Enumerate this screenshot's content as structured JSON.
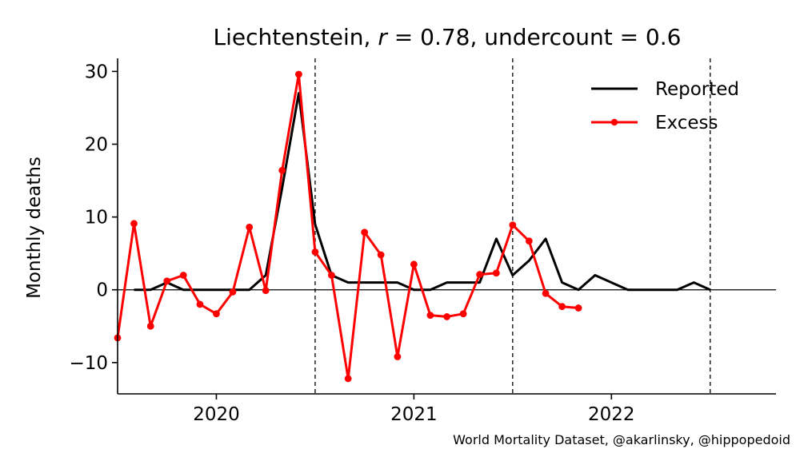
{
  "chart_data": {
    "type": "line",
    "title_prefix": "Liechtenstein, ",
    "r_symbol": "r",
    "r_text": " = 0.78, undercount = 0.6",
    "xlabel": "",
    "ylabel": "Monthly deaths",
    "xlim": [
      2019.5,
      2022.833
    ],
    "ylim": [
      -14.3,
      31.8
    ],
    "yticks": [
      -10,
      0,
      10,
      20,
      30
    ],
    "ytick_labels": [
      "−10",
      "0",
      "10",
      "20",
      "30"
    ],
    "xticks": [
      2020,
      2021,
      2022
    ],
    "xtick_labels": [
      "2020",
      "2021",
      "2022"
    ],
    "vlines": [
      2020.5,
      2021.5,
      2022.5
    ],
    "hline": 0,
    "series": [
      {
        "name": "Reported",
        "color": "#000000",
        "markers": false,
        "x": [
          2019.583,
          2019.667,
          2019.75,
          2019.833,
          2019.917,
          2020.0,
          2020.083,
          2020.167,
          2020.25,
          2020.333,
          2020.417,
          2020.5,
          2020.583,
          2020.667,
          2020.75,
          2020.833,
          2020.917,
          2021.0,
          2021.083,
          2021.167,
          2021.25,
          2021.333,
          2021.417,
          2021.5,
          2021.583,
          2021.667,
          2021.75,
          2021.833,
          2021.917,
          2022.0,
          2022.083,
          2022.167,
          2022.25,
          2022.333,
          2022.417,
          2022.5
        ],
        "y": [
          0,
          0,
          1,
          0,
          0,
          0,
          0,
          0,
          2,
          14,
          27,
          9,
          2,
          1,
          1,
          1,
          1,
          0,
          0,
          1,
          1,
          1,
          7,
          2,
          4,
          7,
          1,
          0,
          2,
          1,
          0,
          0,
          0,
          0,
          1,
          0
        ]
      },
      {
        "name": "Excess",
        "color": "#ff0000",
        "markers": true,
        "x": [
          2019.5,
          2019.583,
          2019.667,
          2019.75,
          2019.833,
          2019.917,
          2020.0,
          2020.083,
          2020.167,
          2020.25,
          2020.333,
          2020.417,
          2020.5,
          2020.583,
          2020.667,
          2020.75,
          2020.833,
          2020.917,
          2021.0,
          2021.083,
          2021.167,
          2021.25,
          2021.333,
          2021.417,
          2021.5,
          2021.583,
          2021.667,
          2021.75,
          2021.833
        ],
        "y": [
          -6.6,
          9.1,
          -5.0,
          1.2,
          2.0,
          -2.0,
          -3.3,
          -0.3,
          8.6,
          -0.1,
          16.4,
          29.6,
          5.2,
          2.0,
          -12.2,
          7.9,
          4.8,
          -9.2,
          3.5,
          -3.5,
          -3.7,
          -3.3,
          2.1,
          2.3,
          8.9,
          6.7,
          -0.5,
          -2.3,
          -2.5
        ]
      }
    ],
    "legend": {
      "position": "top-right",
      "entries": [
        "Reported",
        "Excess"
      ]
    },
    "grid": false
  },
  "credit": "World Mortality Dataset, @akarlinsky, @hippopedoid"
}
